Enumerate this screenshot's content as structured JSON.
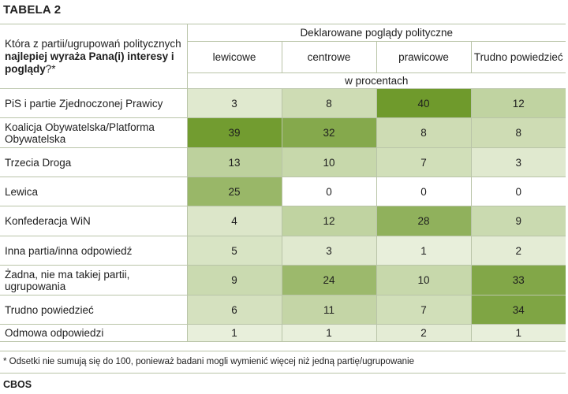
{
  "table_label": "TABELA 2",
  "question": {
    "part1": "Która z partii/ugrupowań politycznych ",
    "bold": "najlepiej wyraża Pana(i) interesy i poglądy",
    "part2": "?*"
  },
  "group_header": "Deklarowane poglądy polityczne",
  "columns": [
    "lewicowe",
    "centrowe",
    "prawicowe",
    "Trudno powiedzieć"
  ],
  "unit_label": "w procentach",
  "rows": [
    {
      "label": "PiS i partie Zjednoczonej Prawicy",
      "values": [
        3,
        8,
        40,
        12
      ]
    },
    {
      "label": "Koalicja Obywatelska/Platforma Obywatelska",
      "values": [
        39,
        32,
        8,
        8
      ]
    },
    {
      "label": "Trzecia Droga",
      "values": [
        13,
        10,
        7,
        3
      ]
    },
    {
      "label": "Lewica",
      "values": [
        25,
        0,
        0,
        0
      ]
    },
    {
      "label": "Konfederacja WiN",
      "values": [
        4,
        12,
        28,
        9
      ]
    },
    {
      "label": "Inna partia/inna odpowiedź",
      "values": [
        5,
        3,
        1,
        2
      ]
    },
    {
      "label": "Żadna, nie ma takiej partii, ugrupowania",
      "values": [
        9,
        24,
        10,
        33
      ]
    },
    {
      "label": "Trudno powiedzieć",
      "values": [
        6,
        11,
        7,
        34
      ]
    },
    {
      "label": "Odmowa odpowiedzi",
      "values": [
        1,
        1,
        2,
        1
      ]
    }
  ],
  "footnote": "* Odsetki nie sumują się do 100, ponieważ badani mogli wymienić więcej niż jedną partię/ugrupowanie",
  "source": "CBOS",
  "colors": {
    "zero": "#ffffff",
    "low": "#eef3e3",
    "high": "#6f9a2c",
    "border": "#b9c4a8"
  }
}
